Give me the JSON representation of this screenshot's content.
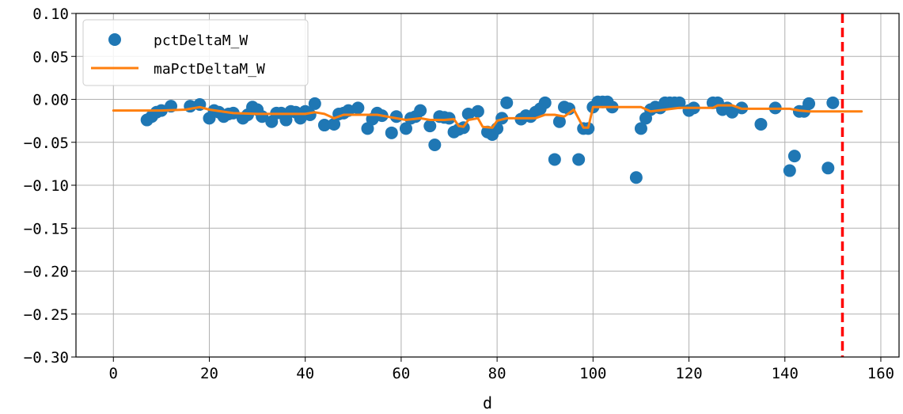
{
  "chart_data": {
    "type": "scatter",
    "title": "",
    "xlabel": "d",
    "ylabel": "",
    "xlim": [
      -7.8,
      163.8
    ],
    "ylim": [
      -0.3,
      0.1
    ],
    "grid": true,
    "legend_position": "top-left",
    "x_ticks": [
      0,
      20,
      40,
      60,
      80,
      100,
      120,
      140,
      160
    ],
    "x_tick_labels": [
      "0",
      "20",
      "40",
      "60",
      "80",
      "100",
      "120",
      "140",
      "160"
    ],
    "y_ticks": [
      0.1,
      0.05,
      0.0,
      -0.05,
      -0.1,
      -0.15,
      -0.2,
      -0.25,
      -0.3
    ],
    "y_tick_labels": [
      "0.10",
      "0.05",
      "0.00",
      "−0.05",
      "−0.10",
      "−0.15",
      "−0.20",
      "−0.25",
      "−0.30"
    ],
    "vertical_line": {
      "x": 152,
      "color": "#ff0000",
      "style": "dashed"
    },
    "series": [
      {
        "name": "pctDeltaM_W",
        "kind": "scatter",
        "color": "#1f77b4",
        "points": [
          [
            7,
            -0.024
          ],
          [
            8,
            -0.02
          ],
          [
            9,
            -0.015
          ],
          [
            10,
            -0.013
          ],
          [
            12,
            -0.008
          ],
          [
            16,
            -0.008
          ],
          [
            18,
            -0.006
          ],
          [
            20,
            -0.022
          ],
          [
            21,
            -0.013
          ],
          [
            22,
            -0.015
          ],
          [
            23,
            -0.02
          ],
          [
            24,
            -0.017
          ],
          [
            25,
            -0.016
          ],
          [
            27,
            -0.022
          ],
          [
            28,
            -0.018
          ],
          [
            29,
            -0.009
          ],
          [
            30,
            -0.012
          ],
          [
            31,
            -0.02
          ],
          [
            33,
            -0.026
          ],
          [
            34,
            -0.016
          ],
          [
            35,
            -0.016
          ],
          [
            36,
            -0.024
          ],
          [
            37,
            -0.014
          ],
          [
            38,
            -0.015
          ],
          [
            39,
            -0.022
          ],
          [
            40,
            -0.014
          ],
          [
            41,
            -0.018
          ],
          [
            42,
            -0.005
          ],
          [
            44,
            -0.03
          ],
          [
            46,
            -0.029
          ],
          [
            47,
            -0.017
          ],
          [
            48,
            -0.016
          ],
          [
            49,
            -0.013
          ],
          [
            51,
            -0.01
          ],
          [
            53,
            -0.034
          ],
          [
            54,
            -0.023
          ],
          [
            55,
            -0.016
          ],
          [
            56,
            -0.019
          ],
          [
            58,
            -0.039
          ],
          [
            59,
            -0.02
          ],
          [
            61,
            -0.034
          ],
          [
            62,
            -0.022
          ],
          [
            63,
            -0.02
          ],
          [
            64,
            -0.013
          ],
          [
            66,
            -0.031
          ],
          [
            67,
            -0.053
          ],
          [
            68,
            -0.02
          ],
          [
            69,
            -0.021
          ],
          [
            70,
            -0.022
          ],
          [
            71,
            -0.038
          ],
          [
            72,
            -0.035
          ],
          [
            73,
            -0.033
          ],
          [
            74,
            -0.017
          ],
          [
            76,
            -0.014
          ],
          [
            78,
            -0.038
          ],
          [
            79,
            -0.041
          ],
          [
            80,
            -0.034
          ],
          [
            81,
            -0.022
          ],
          [
            82,
            -0.004
          ],
          [
            85,
            -0.023
          ],
          [
            86,
            -0.019
          ],
          [
            87,
            -0.02
          ],
          [
            88,
            -0.015
          ],
          [
            89,
            -0.011
          ],
          [
            90,
            -0.004
          ],
          [
            92,
            -0.07
          ],
          [
            93,
            -0.026
          ],
          [
            94,
            -0.009
          ],
          [
            95,
            -0.011
          ],
          [
            97,
            -0.07
          ],
          [
            98,
            -0.034
          ],
          [
            99,
            -0.034
          ],
          [
            100,
            -0.009
          ],
          [
            101,
            -0.003
          ],
          [
            102,
            -0.003
          ],
          [
            103,
            -0.003
          ],
          [
            104,
            -0.009
          ],
          [
            109,
            -0.091
          ],
          [
            110,
            -0.034
          ],
          [
            111,
            -0.022
          ],
          [
            112,
            -0.012
          ],
          [
            113,
            -0.009
          ],
          [
            114,
            -0.01
          ],
          [
            115,
            -0.004
          ],
          [
            116,
            -0.004
          ],
          [
            117,
            -0.004
          ],
          [
            118,
            -0.004
          ],
          [
            120,
            -0.013
          ],
          [
            121,
            -0.01
          ],
          [
            125,
            -0.004
          ],
          [
            126,
            -0.004
          ],
          [
            127,
            -0.012
          ],
          [
            128,
            -0.01
          ],
          [
            129,
            -0.015
          ],
          [
            131,
            -0.01
          ],
          [
            135,
            -0.029
          ],
          [
            138,
            -0.01
          ],
          [
            141,
            -0.083
          ],
          [
            142,
            -0.066
          ],
          [
            143,
            -0.014
          ],
          [
            144,
            -0.014
          ],
          [
            145,
            -0.005
          ],
          [
            149,
            -0.08
          ],
          [
            150,
            -0.004
          ]
        ]
      },
      {
        "name": "maPctDeltaM_W",
        "kind": "line",
        "color": "#ff7f0e",
        "points": [
          [
            0,
            -0.013
          ],
          [
            10,
            -0.013
          ],
          [
            15,
            -0.012
          ],
          [
            18,
            -0.009
          ],
          [
            20,
            -0.012
          ],
          [
            25,
            -0.016
          ],
          [
            30,
            -0.017
          ],
          [
            40,
            -0.017
          ],
          [
            42,
            -0.015
          ],
          [
            44,
            -0.017
          ],
          [
            46,
            -0.022
          ],
          [
            48,
            -0.018
          ],
          [
            55,
            -0.018
          ],
          [
            58,
            -0.021
          ],
          [
            61,
            -0.024
          ],
          [
            64,
            -0.022
          ],
          [
            66,
            -0.024
          ],
          [
            69,
            -0.024
          ],
          [
            71,
            -0.023
          ],
          [
            72,
            -0.031
          ],
          [
            73,
            -0.032
          ],
          [
            74,
            -0.024
          ],
          [
            76,
            -0.022
          ],
          [
            77,
            -0.032
          ],
          [
            79,
            -0.033
          ],
          [
            80,
            -0.025
          ],
          [
            82,
            -0.022
          ],
          [
            88,
            -0.022
          ],
          [
            90,
            -0.018
          ],
          [
            92,
            -0.018
          ],
          [
            94,
            -0.02
          ],
          [
            96,
            -0.012
          ],
          [
            98,
            -0.033
          ],
          [
            99,
            -0.033
          ],
          [
            100,
            -0.009
          ],
          [
            110,
            -0.009
          ],
          [
            112,
            -0.014
          ],
          [
            115,
            -0.012
          ],
          [
            118,
            -0.01
          ],
          [
            125,
            -0.01
          ],
          [
            126,
            -0.007
          ],
          [
            129,
            -0.007
          ],
          [
            131,
            -0.011
          ],
          [
            138,
            -0.011
          ],
          [
            141,
            -0.011
          ],
          [
            143,
            -0.013
          ],
          [
            145,
            -0.014
          ],
          [
            156,
            -0.014
          ]
        ]
      }
    ]
  }
}
